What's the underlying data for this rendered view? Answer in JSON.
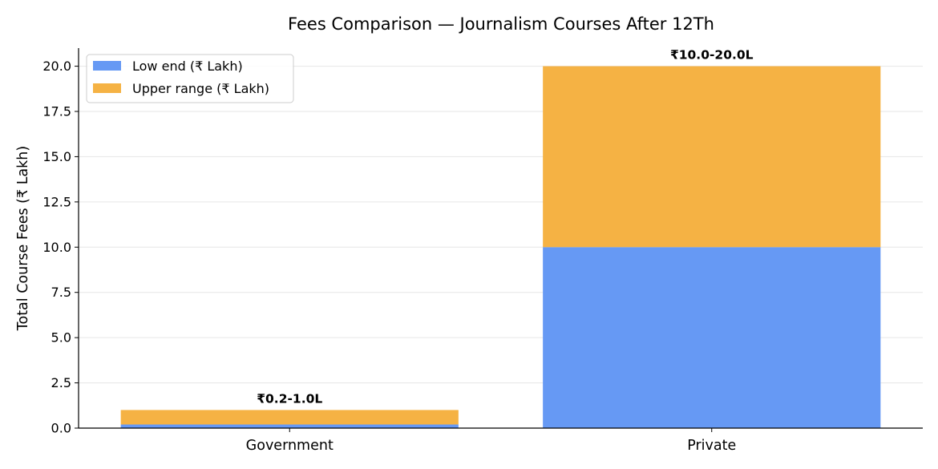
{
  "chart_data": {
    "type": "bar",
    "stacked": true,
    "title": "Fees Comparison — Journalism Courses After 12Th",
    "xlabel": "",
    "ylabel": "Total Course Fees (₹ Lakh)",
    "categories": [
      "Government",
      "Private"
    ],
    "series": [
      {
        "name": "Low end (₹ Lakh)",
        "values": [
          0.2,
          10.0
        ],
        "color": "#6699f4"
      },
      {
        "name": "Upper range (₹ Lakh)",
        "values": [
          0.8,
          10.0
        ],
        "color": "#f5b244"
      }
    ],
    "data_labels": [
      "₹0.2-1.0L",
      "₹10.0-20.0L"
    ],
    "ylim": [
      0,
      21
    ],
    "yticks": [
      "0.0",
      "2.5",
      "5.0",
      "7.5",
      "10.0",
      "12.5",
      "15.0",
      "17.5",
      "20.0"
    ],
    "grid": true,
    "legend_position": "top-left"
  }
}
